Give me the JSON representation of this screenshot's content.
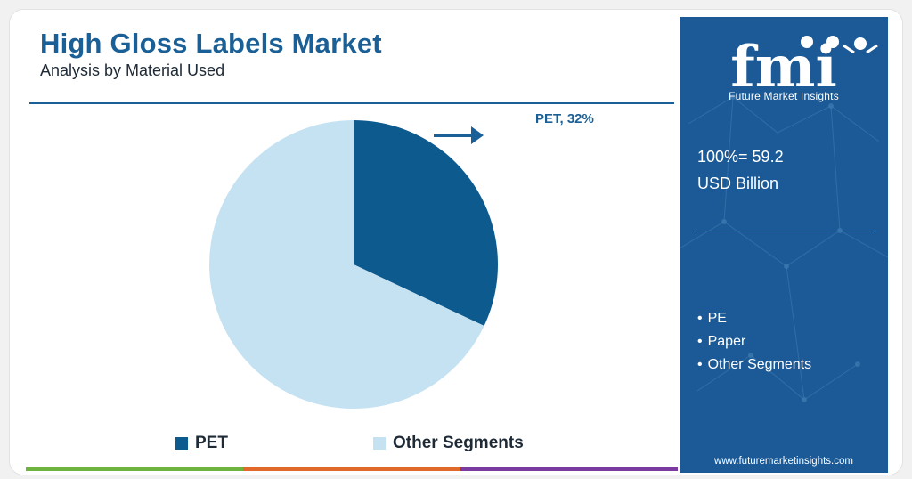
{
  "header": {
    "title": "High Gloss Labels Market",
    "subtitle": "Analysis by Material Used"
  },
  "chart_data": {
    "type": "pie",
    "slices": [
      {
        "name": "PET",
        "value": 32,
        "color": "#0d5a8e"
      },
      {
        "name": "Other Segments",
        "value": 68,
        "color": "#c5e2f3"
      }
    ],
    "annotation": "PET, 32%",
    "legend": [
      "PET",
      "Other Segments"
    ],
    "legend_position": "bottom"
  },
  "sidebar": {
    "logo_letters": "fmi",
    "logo_text": "Future Market Insights",
    "total_line1": "100%= 59.2",
    "total_line2": "USD Billion",
    "segments": [
      "PE",
      "Paper",
      "Other Segments"
    ],
    "url": "www.futuremarketinsights.com"
  },
  "colors": {
    "brand_blue": "#1a5f96",
    "sidebar_bg": "#1b5a96",
    "bar_green": "#6fb33f",
    "bar_orange": "#e0682b",
    "bar_purple": "#7a3aa0"
  }
}
